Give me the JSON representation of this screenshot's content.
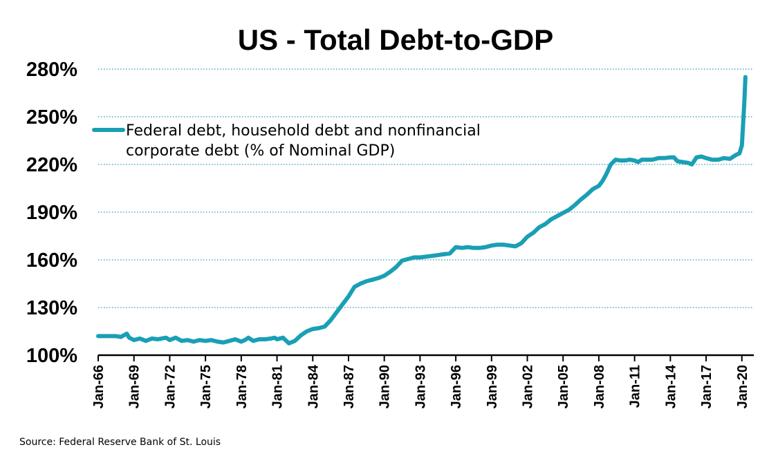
{
  "chart_data": {
    "type": "line",
    "title": "US - Total Debt-to-GDP",
    "source": "Source: Federal Reserve Bank of St. Louis",
    "legend": {
      "placement": "top-left",
      "line1": "Federal debt, household debt and nonfinancial",
      "line2": "corporate debt (% of Nominal GDP)"
    },
    "y_ticks": [
      "100%",
      "130%",
      "160%",
      "190%",
      "220%",
      "250%",
      "280%"
    ],
    "x_ticks": [
      "Jan-66",
      "Jan-69",
      "Jan-72",
      "Jan-75",
      "Jan-78",
      "Jan-81",
      "Jan-84",
      "Jan-87",
      "Jan-90",
      "Jan-93",
      "Jan-96",
      "Jan-99",
      "Jan-02",
      "Jan-05",
      "Jan-08",
      "Jan-11",
      "Jan-14",
      "Jan-17",
      "Jan-20"
    ],
    "ylim": [
      100,
      280
    ],
    "xlim": [
      1966.0,
      2021.0
    ],
    "grid": "horizontal-dotted",
    "colors": {
      "series": "#1a9fb5",
      "grid": "#4aa8bf"
    },
    "series": [
      {
        "x": [
          1966.0,
          1967.0,
          1967.5,
          1967.9,
          1968.4,
          1968.6,
          1969.0,
          1969.5,
          1970.0,
          1970.5,
          1971.0,
          1971.3,
          1971.7,
          1972.0,
          1972.5,
          1973.0,
          1973.5,
          1974.0,
          1974.5,
          1975.0,
          1975.5,
          1976.0,
          1976.5,
          1977.0,
          1977.5,
          1978.0,
          1978.3,
          1978.6,
          1979.0,
          1979.5,
          1980.0,
          1980.5,
          1980.8,
          1981.0,
          1981.5,
          1982.0,
          1982.5,
          1983.0,
          1983.5,
          1984.0,
          1984.5,
          1985.0,
          1985.5,
          1986.0,
          1986.5,
          1987.0,
          1987.5,
          1988.0,
          1988.5,
          1989.0,
          1989.5,
          1990.0,
          1990.5,
          1991.0,
          1991.5,
          1992.0,
          1992.5,
          1993.0,
          1994.0,
          1995.0,
          1995.5,
          1996.0,
          1996.5,
          1997.0,
          1997.5,
          1998.0,
          1998.5,
          1999.0,
          1999.5,
          2000.0,
          2000.5,
          2001.0,
          2001.5,
          2002.0,
          2002.5,
          2003.0,
          2003.5,
          2004.0,
          2004.5,
          2005.0,
          2005.5,
          2006.0,
          2006.5,
          2007.0,
          2007.5,
          2008.0,
          2008.3,
          2008.6,
          2009.0,
          2009.4,
          2009.8,
          2010.2,
          2010.6,
          2011.0,
          2011.3,
          2011.6,
          2012.0,
          2012.5,
          2013.0,
          2013.5,
          2014.0,
          2014.3,
          2014.6,
          2015.0,
          2015.5,
          2015.8,
          2016.2,
          2016.6,
          2017.0,
          2017.5,
          2018.0,
          2018.5,
          2019.0,
          2019.5,
          2019.8,
          2020.0,
          2020.2,
          2020.3
        ],
        "values": [
          112,
          112,
          112,
          111.5,
          113.5,
          111,
          109.5,
          110.5,
          109,
          110.5,
          110,
          110.5,
          111,
          109.5,
          111,
          109,
          109.5,
          108.5,
          109.5,
          109,
          109.5,
          108.5,
          108,
          109,
          110,
          108.5,
          109.5,
          111,
          109,
          110,
          110,
          110.5,
          111,
          110,
          111,
          107.5,
          109,
          112.5,
          115,
          116.5,
          117,
          118,
          122,
          127,
          132,
          137,
          143,
          145,
          146.5,
          147.5,
          148.5,
          150,
          152.5,
          155.5,
          159.5,
          160.5,
          161.5,
          161.5,
          162.5,
          163.5,
          164,
          168,
          167.5,
          168,
          167.5,
          167.5,
          168,
          169,
          169.5,
          169.5,
          169,
          168.5,
          170.5,
          174.5,
          177,
          180.5,
          182.5,
          185.5,
          187.5,
          189.5,
          191.5,
          194.5,
          198,
          201,
          204.5,
          206.5,
          209.5,
          213.5,
          220,
          223,
          222.5,
          222.5,
          223,
          222.5,
          221.5,
          223,
          223,
          223,
          224,
          224,
          224.5,
          224.5,
          222,
          221.5,
          221,
          220,
          224.5,
          225,
          224,
          223,
          223,
          224,
          223.5,
          226,
          227,
          232,
          258,
          275
        ]
      }
    ]
  }
}
